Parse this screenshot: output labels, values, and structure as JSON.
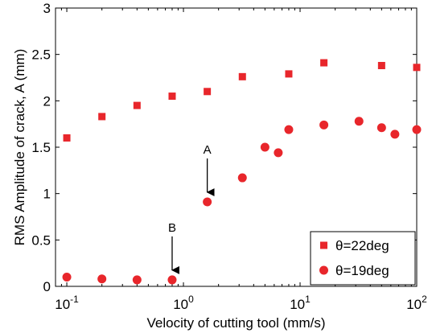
{
  "chart_data": {
    "type": "scatter",
    "title": "",
    "xlabel": "Velocity of cutting tool (mm/s)",
    "ylabel": "RMS Amplitude of crack, A (mm)",
    "xscale": "log",
    "xlim": [
      0.08,
      100
    ],
    "ylim": [
      0,
      3
    ],
    "xticks": [
      {
        "value": 0.1,
        "base": "10",
        "exp": "-1"
      },
      {
        "value": 1,
        "base": "10",
        "exp": "0"
      },
      {
        "value": 10,
        "base": "10",
        "exp": "1"
      },
      {
        "value": 100,
        "base": "10",
        "exp": "2"
      }
    ],
    "yticks": [
      {
        "value": 0,
        "label": "0"
      },
      {
        "value": 0.5,
        "label": "0.5"
      },
      {
        "value": 1,
        "label": "1"
      },
      {
        "value": 1.5,
        "label": "1.5"
      },
      {
        "value": 2,
        "label": "2"
      },
      {
        "value": 2.5,
        "label": "2.5"
      },
      {
        "value": 3,
        "label": "3"
      }
    ],
    "grid": false,
    "legend_position": "bottom-right",
    "series": [
      {
        "name": "θ=22deg",
        "marker": "square",
        "color": "#e8262b",
        "x": [
          0.1,
          0.2,
          0.4,
          0.8,
          1.6,
          3.2,
          8,
          16,
          50,
          100
        ],
        "y": [
          1.6,
          1.83,
          1.95,
          2.05,
          2.1,
          2.26,
          2.29,
          2.41,
          2.38,
          2.36
        ]
      },
      {
        "name": "θ=19deg",
        "marker": "circle",
        "color": "#e8262b",
        "x": [
          0.1,
          0.2,
          0.4,
          0.8,
          1.6,
          3.2,
          5,
          6.5,
          8,
          16,
          32,
          50,
          65,
          100
        ],
        "y": [
          0.1,
          0.08,
          0.07,
          0.07,
          0.91,
          1.17,
          1.5,
          1.44,
          1.69,
          1.74,
          1.78,
          1.71,
          1.64,
          1.69
        ]
      }
    ],
    "annotations": [
      {
        "label": "A",
        "x": 1.6,
        "y": 0.91
      },
      {
        "label": "B",
        "x": 0.8,
        "y": 0.07
      }
    ]
  }
}
